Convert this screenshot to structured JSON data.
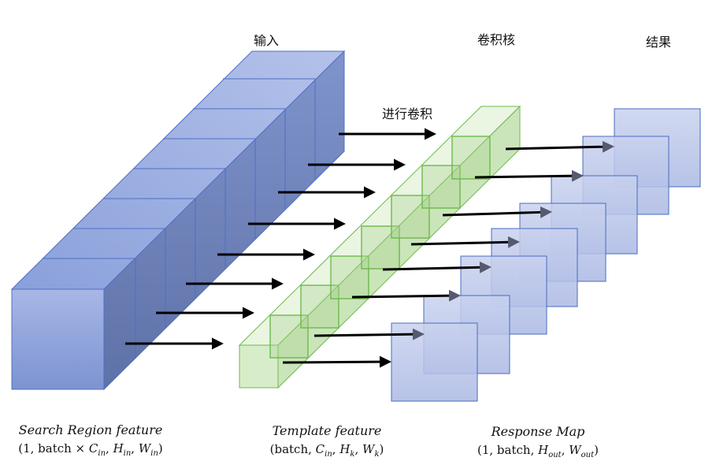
{
  "headers": {
    "input": "输入",
    "kernel": "卷积核",
    "result": "结果",
    "conv_action": "进行卷积"
  },
  "captions": {
    "search": {
      "title": "Search Region feature",
      "p_open": "(1, batch × ",
      "p_c": "C",
      "p_c_sub": "in",
      "p_h": "H",
      "p_h_sub": "in",
      "p_w": "W",
      "p_w_sub": "in",
      "p_sep": ", ",
      "p_close": ")"
    },
    "template": {
      "title": "Template feature",
      "p_open": "(batch, ",
      "p_c": "C",
      "p_c_sub": "in",
      "p_h": "H",
      "p_h_sub": "k",
      "p_w": "W",
      "p_w_sub": "k",
      "p_sep": ", ",
      "p_close": ")"
    },
    "response": {
      "title": "Response Map",
      "p_open": "(1, batch, ",
      "p_h": "H",
      "p_h_sub": "out",
      "p_w": "W",
      "p_w_sub": "out",
      "p_sep": ", ",
      "p_close": ")"
    }
  },
  "colors": {
    "input_front": "#92a6dc",
    "input_top": "#a9b9e6",
    "input_side": "#6f85c0",
    "input_edge": "#4f6fc4",
    "kernel_fill": "#d6ecc8",
    "kernel_edge": "#6cba4a",
    "map_fill": "#c3cdec",
    "map_edge": "#4a6bc0",
    "arrow": "#000000",
    "arrow_gray": "#555a70"
  }
}
